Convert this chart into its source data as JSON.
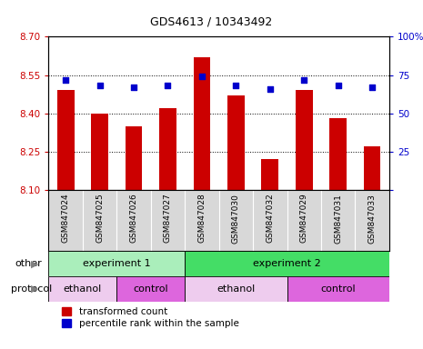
{
  "title": "GDS4613 / 10343492",
  "samples": [
    "GSM847024",
    "GSM847025",
    "GSM847026",
    "GSM847027",
    "GSM847028",
    "GSM847030",
    "GSM847032",
    "GSM847029",
    "GSM847031",
    "GSM847033"
  ],
  "transformed_counts": [
    8.49,
    8.4,
    8.35,
    8.42,
    8.62,
    8.47,
    8.22,
    8.49,
    8.38,
    8.27
  ],
  "percentile_ranks": [
    72,
    68,
    67,
    68,
    74,
    68,
    66,
    72,
    68,
    67
  ],
  "ylim_left": [
    8.1,
    8.7
  ],
  "ylim_right": [
    0,
    100
  ],
  "yticks_left": [
    8.1,
    8.25,
    8.4,
    8.55,
    8.7
  ],
  "yticks_right": [
    0,
    25,
    50,
    75,
    100
  ],
  "bar_color": "#cc0000",
  "dot_color": "#0000cc",
  "bar_width": 0.5,
  "bar_bottom": 8.1,
  "groups_other": [
    {
      "label": "experiment 1",
      "start": 0,
      "end": 4,
      "color": "#aaeebb"
    },
    {
      "label": "experiment 2",
      "start": 4,
      "end": 10,
      "color": "#44dd66"
    }
  ],
  "groups_protocol": [
    {
      "label": "ethanol",
      "start": 0,
      "end": 2,
      "color": "#eeccee"
    },
    {
      "label": "control",
      "start": 2,
      "end": 4,
      "color": "#dd66dd"
    },
    {
      "label": "ethanol",
      "start": 4,
      "end": 7,
      "color": "#eeccee"
    },
    {
      "label": "control",
      "start": 7,
      "end": 10,
      "color": "#dd66dd"
    }
  ],
  "xtick_bg_color": "#d8d8d8",
  "background_color": "#ffffff",
  "tick_color_left": "#cc0000",
  "tick_color_right": "#0000cc",
  "legend_labels": [
    "transformed count",
    "percentile rank within the sample"
  ],
  "legend_colors": [
    "#cc0000",
    "#0000cc"
  ]
}
